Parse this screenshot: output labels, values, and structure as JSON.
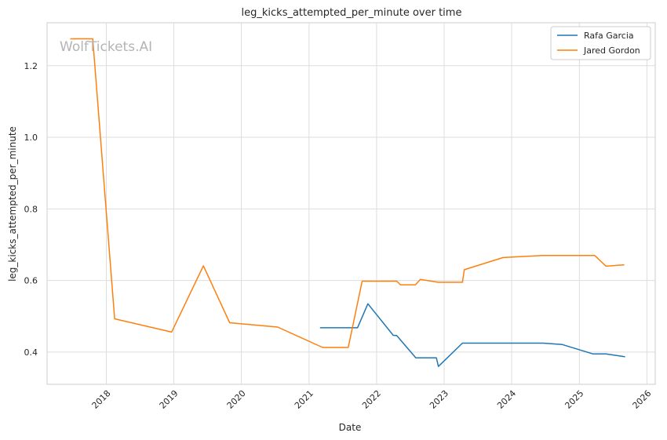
{
  "chart_data": {
    "type": "line",
    "title": "leg_kicks_attempted_per_minute over time",
    "xlabel": "Date",
    "ylabel": "leg_kicks_attempted_per_minute",
    "watermark": "WolfTickets.AI",
    "x_ticks": [
      "2018",
      "2019",
      "2020",
      "2021",
      "2022",
      "2023",
      "2024",
      "2025",
      "2026"
    ],
    "y_ticks": [
      "0.4",
      "0.6",
      "0.8",
      "1.0",
      "1.2"
    ],
    "ylim": [
      0.31,
      1.32
    ],
    "xlim": [
      "2017-02-15",
      "2026-02-15"
    ],
    "grid": true,
    "legend_position": "top-right",
    "series": [
      {
        "name": "Rafa Garcia",
        "color": "#1f77b4",
        "points": [
          [
            "2021-03-01",
            0.468
          ],
          [
            "2021-09-20",
            0.468
          ],
          [
            "2021-11-15",
            0.535
          ],
          [
            "2022-04-01",
            0.447
          ],
          [
            "2022-04-20",
            0.446
          ],
          [
            "2022-08-01",
            0.384
          ],
          [
            "2022-11-20",
            0.384
          ],
          [
            "2022-12-01",
            0.36
          ],
          [
            "2023-04-10",
            0.425
          ],
          [
            "2024-06-20",
            0.425
          ],
          [
            "2024-10-01",
            0.421
          ],
          [
            "2025-03-15",
            0.395
          ],
          [
            "2025-05-25",
            0.395
          ],
          [
            "2025-09-05",
            0.387
          ]
        ]
      },
      {
        "name": "Jared Gordon",
        "color": "#ff7f0e",
        "points": [
          [
            "2017-06-20",
            1.275
          ],
          [
            "2017-10-20",
            1.275
          ],
          [
            "2018-02-15",
            0.493
          ],
          [
            "2018-12-20",
            0.456
          ],
          [
            "2019-06-10",
            0.641
          ],
          [
            "2019-10-30",
            0.482
          ],
          [
            "2020-07-15",
            0.47
          ],
          [
            "2021-03-15",
            0.413
          ],
          [
            "2021-08-01",
            0.413
          ],
          [
            "2021-10-15",
            0.598
          ],
          [
            "2022-04-20",
            0.598
          ],
          [
            "2022-05-10",
            0.588
          ],
          [
            "2022-07-30",
            0.588
          ],
          [
            "2022-08-25",
            0.603
          ],
          [
            "2022-11-30",
            0.595
          ],
          [
            "2023-04-10",
            0.595
          ],
          [
            "2023-04-20",
            0.63
          ],
          [
            "2023-11-15",
            0.664
          ],
          [
            "2024-06-15",
            0.67
          ],
          [
            "2025-03-25",
            0.67
          ],
          [
            "2025-05-25",
            0.64
          ],
          [
            "2025-09-01",
            0.644
          ]
        ]
      }
    ]
  }
}
